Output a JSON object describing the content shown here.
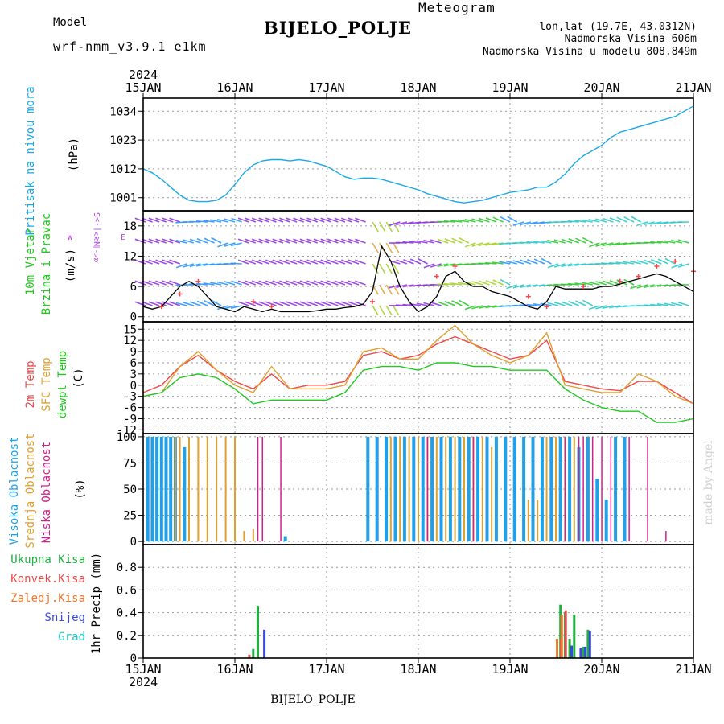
{
  "header": {
    "model_label": "Model",
    "model_name": "wrf-nmm_v3.9.1 e1km",
    "product": "Meteogram",
    "station": "BIJELO_POLJE",
    "lonlat": "lon,lat (19.7E, 43.0312N)",
    "altitude": "Nadmorska Visina 606m",
    "model_altitude": "Nadmorska Visina u modelu 808.849m",
    "year": "2024",
    "footer_station": "BIJELO_POLJE",
    "credit": "made by Angel"
  },
  "colors": {
    "pressure": "#1ca8e8",
    "temp": "#f04848",
    "sfc_temp": "#e0a030",
    "dewpt": "#20c820",
    "high_cloud": "#20a0e8",
    "mid_cloud": "#e0a030",
    "low_cloud": "#d0208c",
    "total_precip": "#20b040",
    "conv_precip": "#f04848",
    "frozen_precip": "#f07830",
    "snow": "#3848e0",
    "graupel": "#20c8c8",
    "model_text": "#b048d8",
    "meteogram_text": "#f0c060",
    "wind_arrows_calm": "#8a2be2"
  },
  "chart_data": [
    {
      "panel": "pressure",
      "type": "line",
      "x_axis": "time",
      "x_ticks": [
        "15JAN",
        "16JAN",
        "17JAN",
        "18JAN",
        "19JAN",
        "20JAN",
        "21JAN"
      ],
      "ylabel_lines": [
        "Pritisak na nivou mora",
        "(hPa)"
      ],
      "y_ticks": [
        1001,
        1012,
        1023,
        1034
      ],
      "ylim": [
        996,
        1039
      ],
      "series": [
        {
          "x": [
            0,
            0.1,
            0.2,
            0.3,
            0.4,
            0.5,
            0.6,
            0.7,
            0.8,
            0.9,
            1.0,
            1.1,
            1.2,
            1.3,
            1.4,
            1.5,
            1.6,
            1.7,
            1.8,
            1.9,
            2.0,
            2.1,
            2.2,
            2.3,
            2.4,
            2.5,
            2.6,
            2.7,
            2.8,
            2.9,
            3.0,
            3.1,
            3.2,
            3.3,
            3.4,
            3.5,
            3.6,
            3.7,
            3.8,
            3.9,
            4.0,
            4.1,
            4.2,
            4.3,
            4.4,
            4.5,
            4.6,
            4.7,
            4.8,
            4.9,
            5.0,
            5.1,
            5.2,
            5.3,
            5.4,
            5.5,
            5.6,
            5.7,
            5.8,
            5.9,
            6.0
          ],
          "values": [
            1012,
            1010.5,
            1008,
            1005,
            1002,
            1000,
            999.5,
            999.5,
            1000,
            1002,
            1006,
            1010.5,
            1013.5,
            1015,
            1015.5,
            1015.5,
            1015,
            1015.5,
            1015,
            1014,
            1013,
            1011,
            1009,
            1008,
            1008.5,
            1008.5,
            1008,
            1007,
            1006,
            1005,
            1004,
            1002.5,
            1001.5,
            1000.5,
            999.5,
            999,
            999.5,
            1000,
            1001,
            1002,
            1003,
            1003.5,
            1004,
            1005,
            1005,
            1007,
            1010,
            1014,
            1017,
            1019,
            1021,
            1024,
            1026,
            1027,
            1028,
            1029,
            1030,
            1031,
            1032,
            1034,
            1036
          ]
        }
      ]
    },
    {
      "panel": "wind",
      "type": "line",
      "x_axis": "time",
      "ylabel_lines": [
        "10m Vjetar",
        "Brzina i Pravac",
        "(m/s)"
      ],
      "compass_labels": {
        "w": "W",
        "e": "E",
        "ns": "N<-|->S",
        "sep": "|",
        "symbol": "α<-|->>"
      },
      "y_ticks": [
        0,
        6,
        12,
        18
      ],
      "ylim": [
        -1,
        21
      ],
      "series": [
        {
          "name": "wind speed",
          "x": [
            0,
            0.1,
            0.2,
            0.3,
            0.4,
            0.5,
            0.6,
            0.7,
            0.8,
            0.9,
            1.0,
            1.1,
            1.2,
            1.3,
            1.4,
            1.5,
            1.6,
            1.7,
            1.8,
            1.9,
            2.0,
            2.1,
            2.2,
            2.3,
            2.4,
            2.5,
            2.6,
            2.7,
            2.8,
            2.9,
            3.0,
            3.1,
            3.2,
            3.3,
            3.4,
            3.5,
            3.6,
            3.7,
            3.8,
            3.9,
            4.0,
            4.1,
            4.2,
            4.3,
            4.4,
            4.5,
            4.6,
            4.7,
            4.8,
            4.9,
            5.0,
            5.1,
            5.2,
            5.3,
            5.4,
            5.5,
            5.6,
            5.7,
            5.8,
            5.9,
            6.0
          ],
          "values": [
            2,
            1.5,
            2,
            4,
            6,
            7,
            6,
            4,
            2,
            1.5,
            1,
            2,
            1.5,
            1,
            1.5,
            1,
            1,
            1,
            1,
            1.2,
            1.5,
            1.5,
            1.8,
            2,
            2.5,
            5,
            14,
            11,
            6,
            3,
            1,
            2,
            4,
            8,
            9,
            7,
            6,
            6,
            5,
            4.5,
            4,
            3,
            2,
            1.5,
            3,
            6,
            5.5,
            5.5,
            5.5,
            5.5,
            6,
            6,
            6.5,
            7,
            7.5,
            8,
            8.5,
            8,
            7,
            6,
            5
          ]
        },
        {
          "name": "gust",
          "x": [
            0.2,
            0.4,
            0.6,
            1.2,
            1.4,
            2.5,
            3.2,
            3.4,
            4.2,
            4.4,
            4.8,
            5.2,
            5.4,
            5.6,
            5.8,
            6.0
          ],
          "values": [
            2,
            4.5,
            7,
            3,
            2,
            3,
            8,
            10,
            4,
            2,
            6,
            7,
            8,
            10,
            11,
            9
          ]
        }
      ]
    },
    {
      "panel": "temperature",
      "type": "line",
      "x_axis": "time",
      "ylabel_lines": [
        "2m Temp",
        "SFC Temp",
        "dewpt Temp",
        "(C)"
      ],
      "y_ticks": [
        -12,
        -9,
        -6,
        -3,
        0,
        3,
        6,
        9,
        12,
        15
      ],
      "ylim": [
        -13,
        17
      ],
      "series": [
        {
          "name": "2m Temp",
          "x": [
            0,
            0.2,
            0.4,
            0.6,
            0.8,
            1.0,
            1.2,
            1.4,
            1.6,
            1.8,
            2.0,
            2.2,
            2.4,
            2.6,
            2.8,
            3.0,
            3.2,
            3.4,
            3.6,
            3.8,
            4.0,
            4.2,
            4.4,
            4.6,
            4.8,
            5.0,
            5.2,
            5.4,
            5.6,
            5.8,
            6.0
          ],
          "values": [
            -2,
            0,
            5,
            8,
            4,
            1,
            -1,
            3,
            -1,
            0,
            0,
            1,
            8,
            9,
            7,
            8,
            11,
            13,
            11,
            9,
            7,
            8,
            12,
            1,
            0,
            -1,
            -1.5,
            1,
            1,
            -2,
            -5
          ]
        },
        {
          "name": "SFC Temp",
          "x": [
            0,
            0.2,
            0.4,
            0.6,
            0.8,
            1.0,
            1.2,
            1.4,
            1.6,
            1.8,
            2.0,
            2.2,
            2.4,
            2.6,
            2.8,
            3.0,
            3.2,
            3.4,
            3.6,
            3.8,
            4.0,
            4.2,
            4.4,
            4.6,
            4.8,
            5.0,
            5.2,
            5.4,
            5.6,
            5.8,
            6.0
          ],
          "values": [
            -3,
            -2,
            5,
            9,
            4,
            0,
            -2,
            5,
            -1,
            -1,
            -1,
            0,
            9,
            10,
            7,
            7,
            12,
            16,
            11,
            8,
            6,
            8,
            14,
            0,
            -1,
            -2,
            -2,
            3,
            1,
            -3,
            -5
          ]
        },
        {
          "name": "dewpt Temp",
          "x": [
            0,
            0.2,
            0.4,
            0.6,
            0.8,
            1.0,
            1.2,
            1.4,
            1.6,
            1.8,
            2.0,
            2.2,
            2.4,
            2.6,
            2.8,
            3.0,
            3.2,
            3.4,
            3.6,
            3.8,
            4.0,
            4.2,
            4.4,
            4.6,
            4.8,
            5.0,
            5.2,
            5.4,
            5.6,
            5.8,
            6.0
          ],
          "values": [
            -3,
            -2,
            2,
            3,
            2,
            -1,
            -5,
            -4,
            -4,
            -4,
            -4,
            -2,
            4,
            5,
            5,
            4,
            6,
            6,
            5,
            5,
            4,
            4,
            4,
            -1,
            -4,
            -6,
            -7,
            -7,
            -10,
            -10,
            -9
          ]
        }
      ]
    },
    {
      "panel": "clouds",
      "type": "bar",
      "x_axis": "time",
      "ylabel_lines": [
        "Visoka Oblacnost",
        "Srednja Oblacnost",
        "Niska Oblacnost",
        "(%)"
      ],
      "y_ticks": [
        0,
        25,
        50,
        75,
        100
      ],
      "ylim": [
        -3,
        103
      ],
      "series": [
        {
          "name": "Visoka Oblacnost",
          "x": [
            0.05,
            0.1,
            0.15,
            0.2,
            0.25,
            0.3,
            0.35,
            0.45,
            1.55,
            2.45,
            2.55,
            2.65,
            2.75,
            2.85,
            2.95,
            3.05,
            3.15,
            3.25,
            3.35,
            3.45,
            3.55,
            3.65,
            3.75,
            3.85,
            3.95,
            4.05,
            4.15,
            4.25,
            4.35,
            4.45,
            4.55,
            4.65,
            4.75,
            4.85,
            4.95,
            5.05,
            5.15,
            5.25
          ],
          "values": [
            100,
            100,
            100,
            100,
            100,
            100,
            100,
            90,
            5,
            100,
            100,
            100,
            100,
            100,
            100,
            100,
            100,
            100,
            100,
            100,
            100,
            100,
            100,
            100,
            100,
            100,
            100,
            100,
            100,
            100,
            100,
            100,
            90,
            100,
            60,
            40,
            100,
            100
          ]
        },
        {
          "name": "Srednja Oblacnost",
          "x": [
            0.35,
            0.4,
            0.5,
            0.6,
            0.7,
            0.8,
            0.9,
            1.0,
            1.1,
            1.2,
            2.7,
            2.8,
            2.9,
            3.0,
            3.1,
            3.2,
            3.3,
            3.4,
            3.5,
            3.6,
            3.7,
            3.8,
            4.2,
            4.3,
            4.4,
            4.5,
            4.6,
            4.7
          ],
          "values": [
            100,
            100,
            100,
            100,
            100,
            100,
            100,
            100,
            10,
            12,
            100,
            100,
            100,
            100,
            100,
            100,
            100,
            100,
            100,
            100,
            100,
            90,
            40,
            40,
            100,
            100,
            100,
            100
          ]
        },
        {
          "name": "Niska Oblacnost",
          "x": [
            1.25,
            1.3,
            1.5,
            3.1,
            3.6,
            4.6,
            4.75,
            4.8,
            4.9,
            5.0,
            5.1,
            5.3,
            5.5,
            5.7
          ],
          "values": [
            100,
            100,
            100,
            100,
            100,
            100,
            100,
            100,
            100,
            100,
            100,
            100,
            100,
            10
          ]
        }
      ]
    },
    {
      "panel": "precip",
      "type": "bar",
      "x_axis": "time",
      "ylabel_lines": [
        "1hr Precip (mm)"
      ],
      "legend": [
        "Ukupna Kisa",
        "Konvek.Kisa",
        "Zaledj.Kisa",
        "Snijeg",
        "Grad"
      ],
      "y_ticks": [
        0,
        0.2,
        0.4,
        0.6,
        0.8
      ],
      "ylim": [
        0,
        1.0
      ],
      "series": [
        {
          "name": "Ukupna Kisa",
          "x": [
            1.2,
            1.25,
            4.55,
            4.6,
            4.65,
            4.7,
            4.8,
            4.85
          ],
          "values": [
            0.08,
            0.46,
            0.47,
            0.4,
            0.17,
            0.38,
            0.1,
            0.25
          ]
        },
        {
          "name": "Konvek.Kisa",
          "x": [
            1.15,
            4.55,
            4.6
          ],
          "values": [
            0.03,
            0.17,
            0.42
          ]
        },
        {
          "name": "Zaledj.Kisa",
          "x": [
            4.5,
            4.55
          ],
          "values": [
            0.17,
            0.38
          ]
        },
        {
          "name": "Snijeg",
          "x": [
            1.3,
            4.65,
            4.75,
            4.8,
            4.85
          ],
          "values": [
            0.25,
            0.11,
            0.09,
            0.1,
            0.24
          ]
        },
        {
          "name": "Grad",
          "x": [],
          "values": []
        }
      ]
    }
  ]
}
